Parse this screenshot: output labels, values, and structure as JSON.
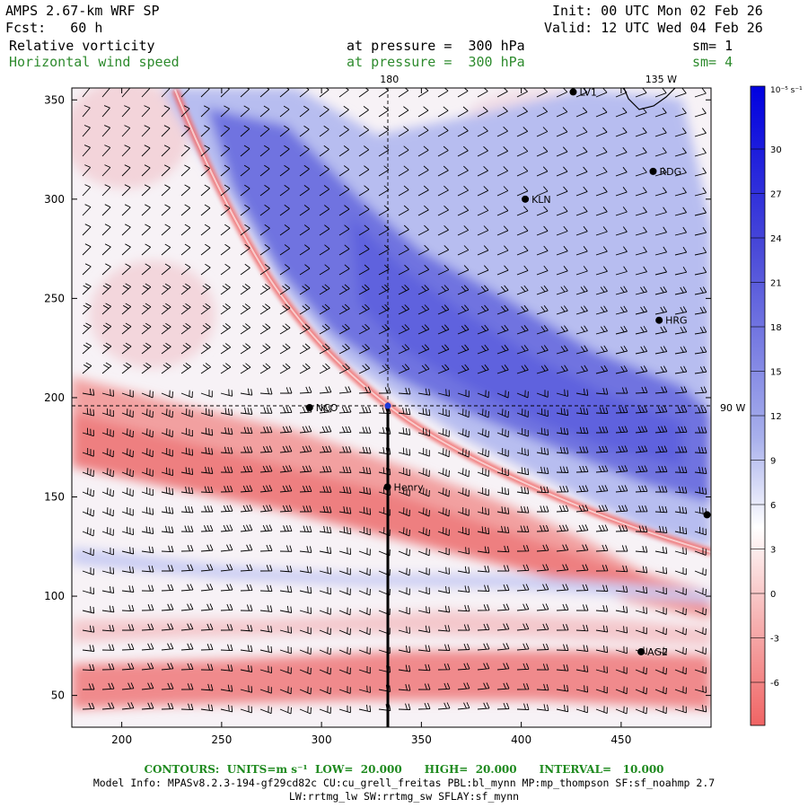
{
  "header": {
    "model": "AMPS 2.67-km WRF SP",
    "fcst": "Fcst:   60 h",
    "init": "Init: 00 UTC Mon 02 Feb 26",
    "valid": "Valid: 12 UTC Wed 04 Feb 26",
    "field1": "Relative vorticity",
    "field1_level": "at pressure =  300 hPa",
    "field1_sm": "sm= 1",
    "field2": "Horizontal wind speed",
    "field2_level": "at pressure =  300 hPa",
    "field2_sm": "sm= 4"
  },
  "colors": {
    "positive": "#3a3ad8",
    "negative": "#f06060",
    "contour_text": "#2e8b2e"
  },
  "map": {
    "x_ticks": [
      200,
      250,
      300,
      350,
      400,
      450
    ],
    "y_ticks": [
      50,
      100,
      150,
      200,
      250,
      300,
      350
    ],
    "x_range": [
      175,
      495
    ],
    "y_range": [
      34,
      356
    ],
    "meridians": [
      {
        "label": "180",
        "x": 334
      },
      {
        "label": "135 W",
        "x": 470
      }
    ],
    "parallels": [
      {
        "label": "90 W",
        "y": 195
      }
    ],
    "stations": [
      {
        "name": "LV1",
        "x": 426,
        "y": 354
      },
      {
        "name": "RDG",
        "x": 466,
        "y": 314
      },
      {
        "name": "KLN",
        "x": 402,
        "y": 300
      },
      {
        "name": "HRG",
        "x": 469,
        "y": 239
      },
      {
        "name": "NCO",
        "x": 294,
        "y": 195
      },
      {
        "name": "Henry",
        "x": 333,
        "y": 155
      },
      {
        "name": "AG2",
        "x": 460,
        "y": 72
      },
      {
        "name": "",
        "x": 493,
        "y": 141
      }
    ],
    "section_line": {
      "x": 334,
      "y_start": 195,
      "y_end": 34
    }
  },
  "colorbar": {
    "unit": "10⁻⁵ s⁻¹",
    "labels": [
      "30",
      "27",
      "24",
      "21",
      "18",
      "15",
      "12",
      "9",
      "6",
      "3",
      "0",
      "-3",
      "-6"
    ]
  },
  "footer": {
    "contours": "CONTOURS:  UNITS=m s⁻¹  LOW=  20.000      HIGH=  20.000      INTERVAL=   10.000",
    "model_info": "Model Info: MPASv8.2.3-194-gf29cd82c CU:cu_grell_freitas PBL:bl_mynn MP:mp_thompson SF:sf_noahmp 2.7",
    "model_info2": "LW:rrtmg_lw SW:rrtmg_sw SFLAY:sf_mynn"
  }
}
